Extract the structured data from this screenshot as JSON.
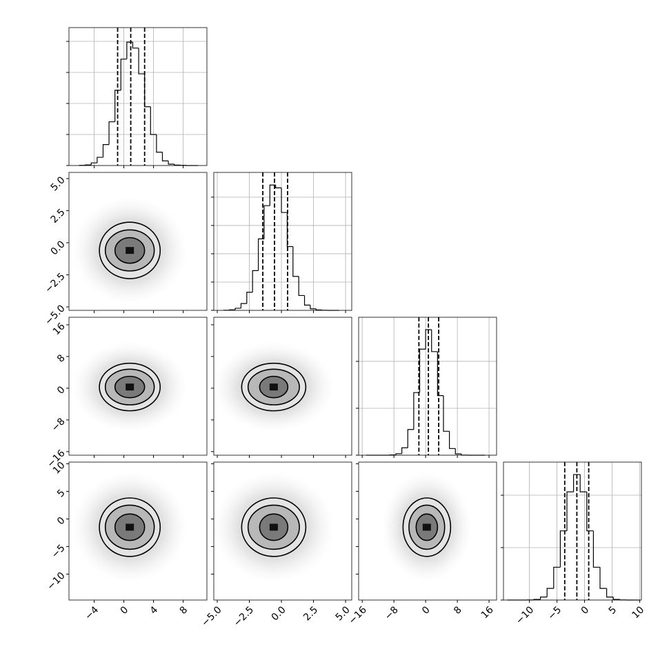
{
  "chart_data": {
    "type": "corner",
    "color": "#000000",
    "grid_color": "#b0b0b0",
    "variables": [
      {
        "lim": [
          -7.4,
          11.2
        ],
        "ticks": [
          {
            "value": -4,
            "label": "−4"
          },
          0,
          4,
          8
        ],
        "quantiles": [
          -0.84,
          0.93,
          2.8
        ],
        "hist": {
          "bins": [
            -6,
            -5.2,
            -4.4,
            -3.6,
            -2.8,
            -2,
            -1.2,
            -0.4,
            0.4,
            1.2,
            2,
            2.8,
            3.6,
            4.4,
            5.2,
            6,
            6.8,
            7.6,
            8.4,
            9.2,
            10
          ],
          "counts": [
            1,
            4,
            17,
            53,
            135,
            282,
            485,
            686,
            795,
            757,
            591,
            379,
            200,
            86,
            30,
            9,
            3,
            1,
            0,
            0
          ],
          "ylim": [
            0,
            889
          ],
          "yticks": [
            0,
            200,
            400,
            600,
            800
          ]
        }
      },
      {
        "lim": [
          -5.27,
          5.48
        ],
        "ticks": [
          {
            "value": -5,
            "label": "−5.0"
          },
          {
            "value": -2.5,
            "label": "−2.5"
          },
          {
            "value": 0,
            "label": "0.0"
          },
          2.5,
          {
            "value": 5,
            "label": "5.0"
          }
        ],
        "quantiles": [
          -1.45,
          -0.54,
          0.48
        ],
        "hist": {
          "bins": [
            -4.5,
            -4.05,
            -3.6,
            -3.15,
            -2.7,
            -2.25,
            -1.8,
            -1.35,
            -0.9,
            -0.45,
            0,
            0.45,
            0.9,
            1.35,
            1.8,
            2.25,
            2.7,
            3.15,
            3.6,
            4.05,
            4.5
          ],
          "counts": [
            1,
            4,
            15,
            48,
            128,
            281,
            505,
            740,
            886,
            866,
            692,
            451,
            240,
            105,
            37,
            11,
            3,
            1,
            0,
            0
          ],
          "ylim": [
            0,
            975
          ],
          "yticks": [
            0,
            200,
            400,
            600,
            800
          ]
        }
      },
      {
        "lim": [
          -16.9,
          17.9
        ],
        "ticks": [
          {
            "value": -16,
            "label": "−16"
          },
          {
            "value": -8,
            "label": "−8"
          },
          0,
          8,
          16
        ],
        "quantiles": [
          -1.7,
          0.7,
          3.3
        ],
        "hist": {
          "bins": [
            -15,
            -13.5,
            -12,
            -10.5,
            -9,
            -7.5,
            -6,
            -4.5,
            -3,
            -1.5,
            0,
            1.5,
            3,
            4.5,
            6,
            7.5,
            9,
            10.5,
            12,
            13.5,
            15
          ],
          "counts": [
            0,
            0,
            0,
            0,
            2,
            13,
            63,
            219,
            534,
            904,
            1070,
            883,
            508,
            204,
            57,
            11,
            1,
            0,
            0,
            0
          ],
          "ylim": [
            0,
            1176
          ],
          "yticks": [
            0,
            400,
            800
          ]
        }
      },
      {
        "lim": [
          -14.7,
          10.3
        ],
        "ticks": [
          {
            "value": -10,
            "label": "−10"
          },
          {
            "value": -5,
            "label": "−5"
          },
          0,
          5,
          10
        ],
        "quantiles": [
          -3.6,
          -1.4,
          0.75
        ],
        "hist": {
          "bins": [
            -14,
            -12.8,
            -11.6,
            -10.4,
            -9.2,
            -8,
            -6.8,
            -5.6,
            -4.4,
            -3.2,
            -2,
            -0.8,
            0.4,
            1.6,
            2.8,
            4,
            5.2,
            6.4,
            7.6,
            8.8,
            10
          ],
          "counts": [
            0,
            0,
            0,
            1,
            6,
            29,
            111,
            313,
            660,
            1032,
            1197,
            1032,
            660,
            313,
            111,
            29,
            6,
            1,
            0,
            0
          ],
          "ylim": [
            0,
            1316
          ],
          "yticks": [
            0,
            500,
            1000
          ]
        }
      }
    ],
    "pairs": [
      {
        "x": 0,
        "y": 1,
        "center": [
          0.8,
          -0.6
        ],
        "levels": [
          [
            4.1,
            2.2
          ],
          [
            3.3,
            1.6
          ],
          [
            2.0,
            1.0
          ]
        ]
      },
      {
        "x": 0,
        "y": 2,
        "center": [
          0.8,
          0.3
        ],
        "levels": [
          [
            4.1,
            6.0
          ],
          [
            3.3,
            4.5
          ],
          [
            2.0,
            2.7
          ]
        ]
      },
      {
        "x": 1,
        "y": 2,
        "center": [
          -0.6,
          0.3
        ],
        "levels": [
          [
            2.5,
            6.0
          ],
          [
            2.0,
            4.5
          ],
          [
            1.1,
            2.7
          ]
        ]
      },
      {
        "x": 0,
        "y": 3,
        "center": [
          0.8,
          -1.5
        ],
        "levels": [
          [
            4.1,
            5.3
          ],
          [
            3.3,
            4.0
          ],
          [
            2.0,
            2.4
          ]
        ]
      },
      {
        "x": 1,
        "y": 3,
        "center": [
          -0.6,
          -1.5
        ],
        "levels": [
          [
            2.5,
            5.3
          ],
          [
            2.0,
            4.0
          ],
          [
            1.1,
            2.4
          ]
        ]
      },
      {
        "x": 2,
        "y": 3,
        "center": [
          0.3,
          -1.5
        ],
        "levels": [
          [
            6.0,
            5.3
          ],
          [
            4.5,
            4.0
          ],
          [
            2.7,
            2.4
          ]
        ]
      }
    ]
  }
}
